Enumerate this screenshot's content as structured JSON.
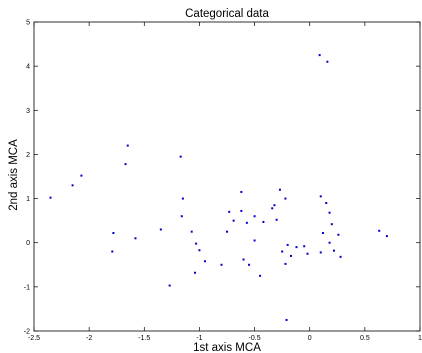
{
  "chart_data": {
    "type": "scatter",
    "title": "Categorical data",
    "xlabel": "1st axis MCA",
    "ylabel": "2nd axis MCA",
    "xlim": [
      -2.5,
      1
    ],
    "ylim": [
      -2,
      5
    ],
    "xticks": [
      -2.5,
      -2,
      -1.5,
      -1,
      -0.5,
      0,
      0.5,
      1
    ],
    "xtick_labels": [
      "-2.5",
      "-2",
      "-1.5",
      "-1",
      "-0.5",
      "0",
      "0.5",
      "1"
    ],
    "yticks": [
      -2,
      -1,
      0,
      1,
      2,
      3,
      4,
      5
    ],
    "ytick_labels": [
      "-2",
      "-1",
      "0",
      "1",
      "2",
      "3",
      "4",
      "5"
    ],
    "grid": false,
    "marker_color": "#0000cc",
    "series": [
      {
        "points": [
          {
            "x": 0.09,
            "y": 4.25
          },
          {
            "x": 0.16,
            "y": 4.1
          },
          {
            "x": -1.65,
            "y": 2.2
          },
          {
            "x": -2.07,
            "y": 1.52
          },
          {
            "x": -1.67,
            "y": 1.78
          },
          {
            "x": -2.15,
            "y": 1.3
          },
          {
            "x": -2.35,
            "y": 1.02
          },
          {
            "x": -1.17,
            "y": 1.95
          },
          {
            "x": -1.15,
            "y": 1.0
          },
          {
            "x": -0.62,
            "y": 1.15
          },
          {
            "x": -0.27,
            "y": 1.2
          },
          {
            "x": -0.22,
            "y": 1.0
          },
          {
            "x": 0.1,
            "y": 1.05
          },
          {
            "x": 0.15,
            "y": 0.9
          },
          {
            "x": -1.78,
            "y": 0.22
          },
          {
            "x": -1.79,
            "y": -0.2
          },
          {
            "x": -1.58,
            "y": 0.1
          },
          {
            "x": -1.35,
            "y": 0.3
          },
          {
            "x": -1.16,
            "y": 0.6
          },
          {
            "x": -1.07,
            "y": 0.25
          },
          {
            "x": -1.03,
            "y": -0.02
          },
          {
            "x": -1.0,
            "y": -0.17
          },
          {
            "x": -0.95,
            "y": -0.42
          },
          {
            "x": -1.04,
            "y": -0.68
          },
          {
            "x": -0.8,
            "y": -0.5
          },
          {
            "x": -0.75,
            "y": 0.25
          },
          {
            "x": -0.73,
            "y": 0.7
          },
          {
            "x": -0.69,
            "y": 0.5
          },
          {
            "x": -0.62,
            "y": 0.72
          },
          {
            "x": -0.57,
            "y": 0.45
          },
          {
            "x": -0.5,
            "y": 0.6
          },
          {
            "x": -0.42,
            "y": 0.47
          },
          {
            "x": -0.6,
            "y": -0.38
          },
          {
            "x": -0.55,
            "y": -0.5
          },
          {
            "x": -0.5,
            "y": 0.05
          },
          {
            "x": -0.45,
            "y": -0.75
          },
          {
            "x": -0.34,
            "y": 0.78
          },
          {
            "x": -0.32,
            "y": 0.85
          },
          {
            "x": -0.3,
            "y": 0.52
          },
          {
            "x": -0.25,
            "y": -0.2
          },
          {
            "x": -0.2,
            "y": -0.05
          },
          {
            "x": -0.17,
            "y": -0.3
          },
          {
            "x": -0.22,
            "y": -0.48
          },
          {
            "x": -0.12,
            "y": -0.1
          },
          {
            "x": -0.05,
            "y": -0.08
          },
          {
            "x": -0.02,
            "y": -0.25
          },
          {
            "x": 0.1,
            "y": -0.22
          },
          {
            "x": 0.12,
            "y": 0.22
          },
          {
            "x": 0.18,
            "y": 0.0
          },
          {
            "x": 0.2,
            "y": 0.42
          },
          {
            "x": 0.22,
            "y": -0.18
          },
          {
            "x": 0.26,
            "y": 0.18
          },
          {
            "x": 0.28,
            "y": -0.32
          },
          {
            "x": 0.18,
            "y": 0.68
          },
          {
            "x": 0.63,
            "y": 0.27
          },
          {
            "x": 0.7,
            "y": 0.15
          },
          {
            "x": -1.27,
            "y": -0.97
          },
          {
            "x": -0.21,
            "y": -1.75
          }
        ]
      }
    ]
  }
}
